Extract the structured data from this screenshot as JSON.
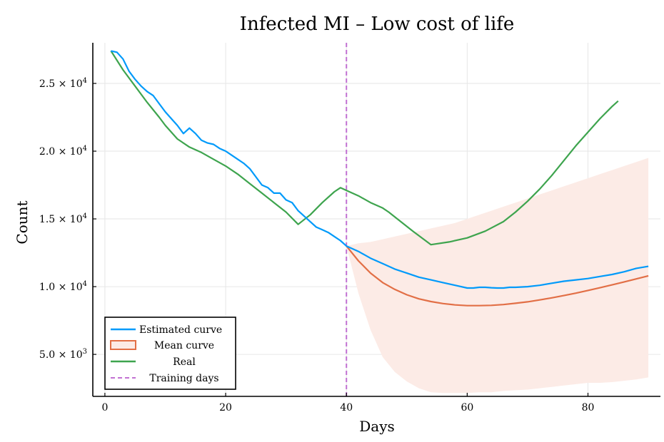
{
  "chart_data": {
    "type": "line",
    "title": "Infected MI – Low cost of life",
    "xlabel": "Days",
    "ylabel": "Count",
    "xlim": [
      -2,
      92
    ],
    "ylim": [
      1900,
      28000
    ],
    "xticks": [
      0,
      20,
      40,
      60,
      80
    ],
    "xtick_labels": [
      "0",
      "20",
      "40",
      "60",
      "80"
    ],
    "yticks": [
      5000,
      10000,
      15000,
      20000,
      25000
    ],
    "ytick_labels": [
      {
        "mant": "5.0 × 10",
        "exp": "3"
      },
      {
        "mant": "1.0 × 10",
        "exp": "4"
      },
      {
        "mant": "1.5 × 10",
        "exp": "4"
      },
      {
        "mant": "2.0 × 10",
        "exp": "4"
      },
      {
        "mant": "2.5 × 10",
        "exp": "4"
      }
    ],
    "grid": true,
    "legend_position": "bottom-left",
    "colors": {
      "estimated": "#009AFA",
      "mean": "#E26F46",
      "real": "#3EA44E",
      "training": "#C271D2",
      "band": "#FCEBE6"
    },
    "series": [
      {
        "name": "Estimated curve",
        "x": [
          1,
          2,
          3,
          4,
          5,
          6,
          7,
          8,
          9,
          10,
          11,
          12,
          13,
          14,
          15,
          16,
          17,
          18,
          19,
          20,
          21,
          22,
          23,
          24,
          25,
          26,
          27,
          28,
          29,
          30,
          31,
          32,
          33,
          34,
          35,
          36,
          37,
          38,
          39,
          40,
          42,
          44,
          46,
          48,
          50,
          52,
          54,
          56,
          58,
          60,
          61,
          62,
          63,
          64,
          65,
          66,
          67,
          68,
          70,
          72,
          74,
          76,
          78,
          80,
          82,
          84,
          86,
          88,
          90
        ],
        "y": [
          27400,
          27300,
          26800,
          25900,
          25300,
          24800,
          24400,
          24100,
          23500,
          22900,
          22400,
          21900,
          21300,
          21700,
          21300,
          20800,
          20600,
          20500,
          20200,
          20000,
          19700,
          19400,
          19100,
          18700,
          18100,
          17500,
          17300,
          16900,
          16900,
          16400,
          16200,
          15600,
          15200,
          14800,
          14400,
          14200,
          14000,
          13700,
          13400,
          13000,
          12600,
          12100,
          11700,
          11300,
          11000,
          10700,
          10500,
          10300,
          10100,
          9900,
          9900,
          9950,
          9950,
          9920,
          9900,
          9900,
          9950,
          9950,
          10000,
          10100,
          10250,
          10400,
          10500,
          10600,
          10750,
          10900,
          11100,
          11350,
          11500
        ]
      },
      {
        "name": "Mean curve",
        "x": [
          40,
          42,
          44,
          46,
          48,
          50,
          52,
          54,
          56,
          58,
          60,
          62,
          64,
          66,
          68,
          70,
          72,
          74,
          76,
          78,
          80,
          82,
          84,
          86,
          88,
          90
        ],
        "y": [
          13000,
          11900,
          11000,
          10300,
          9800,
          9400,
          9100,
          8900,
          8750,
          8650,
          8600,
          8600,
          8620,
          8680,
          8770,
          8880,
          9020,
          9170,
          9340,
          9520,
          9720,
          9920,
          10130,
          10350,
          10570,
          10800
        ],
        "band_upper": [
          13000,
          13200,
          13300,
          13500,
          13700,
          13900,
          14100,
          14300,
          14500,
          14700,
          15000,
          15300,
          15600,
          15900,
          16200,
          16500,
          16800,
          17100,
          17400,
          17700,
          18000,
          18300,
          18600,
          18900,
          19200,
          19500
        ],
        "band_lower": [
          13000,
          9500,
          6800,
          4800,
          3700,
          3000,
          2500,
          2200,
          2150,
          2150,
          2150,
          2200,
          2200,
          2300,
          2350,
          2400,
          2500,
          2600,
          2700,
          2800,
          2900,
          2900,
          2950,
          3050,
          3150,
          3300
        ]
      },
      {
        "name": "Real",
        "x": [
          1,
          3,
          5,
          7,
          9,
          10,
          12,
          14,
          16,
          18,
          20,
          22,
          24,
          26,
          28,
          30,
          32,
          34,
          36,
          38,
          39,
          40,
          42,
          44,
          46,
          47,
          49,
          51,
          54,
          57,
          60,
          63,
          66,
          68,
          70,
          72,
          74,
          76,
          78,
          80,
          82,
          84,
          85
        ],
        "y": [
          27400,
          26000,
          24800,
          23600,
          22500,
          21900,
          20900,
          20300,
          19900,
          19400,
          18900,
          18300,
          17600,
          16900,
          16200,
          15500,
          14600,
          15300,
          16200,
          17000,
          17300,
          17100,
          16700,
          16200,
          15800,
          15500,
          14800,
          14100,
          13100,
          13300,
          13600,
          14100,
          14800,
          15500,
          16300,
          17200,
          18200,
          19300,
          20400,
          21400,
          22400,
          23300,
          23700
        ]
      },
      {
        "name": "Training days",
        "x_value": 40
      }
    ]
  }
}
